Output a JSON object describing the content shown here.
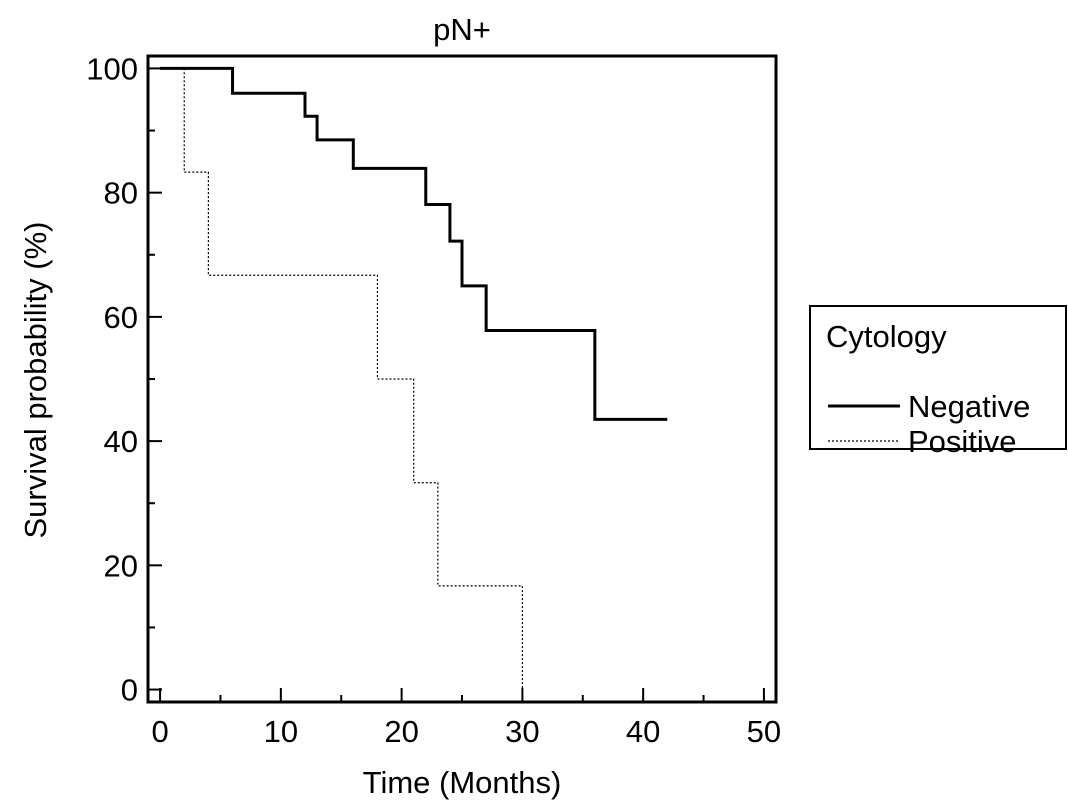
{
  "chart_data": {
    "type": "line",
    "step": true,
    "title": "pN+",
    "xlabel": "Time (Months)",
    "ylabel": "Survival probability (%)",
    "xlim": [
      -1,
      51
    ],
    "ylim": [
      -2,
      102
    ],
    "xticks": [
      0,
      10,
      20,
      30,
      40,
      50
    ],
    "yticks": [
      0,
      20,
      40,
      60,
      80,
      100
    ],
    "xminor": [
      5,
      15,
      25,
      35,
      45
    ],
    "yminor": [
      10,
      30,
      50,
      70,
      90
    ],
    "grid": false,
    "legend": {
      "title": "Cytology",
      "placement": "right, outside plot",
      "entries": [
        "Negative",
        "Positive"
      ]
    },
    "series": [
      {
        "name": "Negative",
        "style": "solid-thick",
        "color": "#000000",
        "points": [
          [
            0,
            100
          ],
          [
            6,
            96
          ],
          [
            12,
            92.3
          ],
          [
            13,
            88.5
          ],
          [
            16,
            83.9
          ],
          [
            22,
            78.1
          ],
          [
            24,
            72.2
          ],
          [
            25,
            65
          ],
          [
            27,
            57.8
          ],
          [
            36,
            43.5
          ]
        ],
        "end_x": 42
      },
      {
        "name": "Positive",
        "style": "dotted-thin",
        "color": "#000000",
        "points": [
          [
            0,
            100
          ],
          [
            2,
            83.3
          ],
          [
            4,
            66.7
          ],
          [
            18,
            50
          ],
          [
            21,
            33.3
          ],
          [
            23,
            16.7
          ],
          [
            30,
            0
          ]
        ],
        "end_x": 30
      }
    ]
  }
}
